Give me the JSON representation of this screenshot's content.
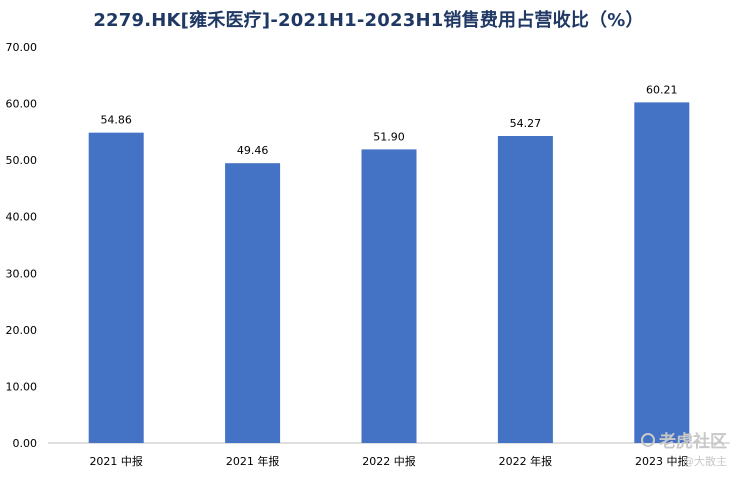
{
  "chart_data": {
    "type": "bar",
    "title": "2279.HK[雍禾医疗]-2021H1-2023H1销售费用占营收比（%）",
    "categories": [
      "2021 中报",
      "2021 年报",
      "2022 中报",
      "2022 年报",
      "2023 中报"
    ],
    "values": [
      54.86,
      49.46,
      51.9,
      54.27,
      60.21
    ],
    "data_labels": [
      "54.86",
      "49.46",
      "51.90",
      "54.27",
      "60.21"
    ],
    "ylim": [
      0,
      70
    ],
    "yticks": [
      "0.00",
      "10.00",
      "20.00",
      "30.00",
      "40.00",
      "50.00",
      "60.00",
      "70.00"
    ],
    "ytick_values": [
      0,
      10,
      20,
      30,
      40,
      50,
      60,
      70
    ],
    "grid": false,
    "bar_color": "#4472c4",
    "xlabel": "",
    "ylabel": ""
  },
  "watermark": {
    "main": "老虎社区",
    "sub": "@大散主"
  }
}
